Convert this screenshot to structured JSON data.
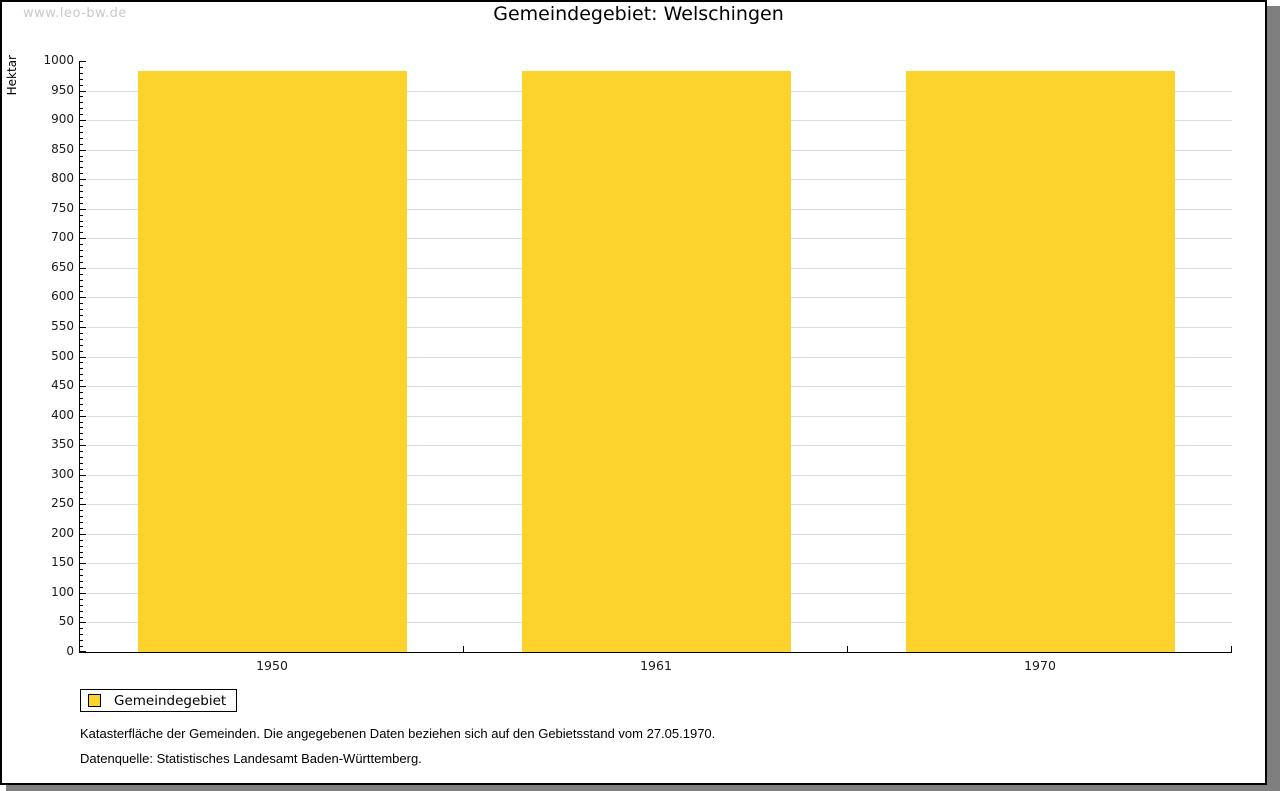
{
  "watermark": "www.leo-bw.de",
  "title": "Gemeindegebiet:  Welschingen",
  "chart_data": {
    "type": "bar",
    "title": "Gemeindegebiet: Welschingen",
    "categories": [
      "1950",
      "1961",
      "1970"
    ],
    "series": [
      {
        "name": "Gemeindegebiet",
        "values": [
          983,
          983,
          983
        ],
        "color": "#fcd32d"
      }
    ],
    "xlabel": "",
    "ylabel": "Hektar",
    "ylim": [
      0,
      1000
    ],
    "y_major_step": 50,
    "y_minor_step": 10,
    "grid": true,
    "legend_position": "bottom-left"
  },
  "legend": {
    "items": [
      {
        "label": "Gemeindegebiet",
        "color": "#fcd32d"
      }
    ]
  },
  "footnotes": [
    "Katasterfläche der Gemeinden. Die angegebenen Daten beziehen sich auf den Gebietsstand vom 27.05.1970.",
    "Datenquelle: Statistisches Landesamt Baden-Württemberg."
  ],
  "colors": {
    "bar": "#fcd32d",
    "grid": "#dcdcdc",
    "axis": "#000000",
    "watermark": "#c8c8c8",
    "shadow": "#7f7f7f",
    "frame_border": "#000000"
  }
}
